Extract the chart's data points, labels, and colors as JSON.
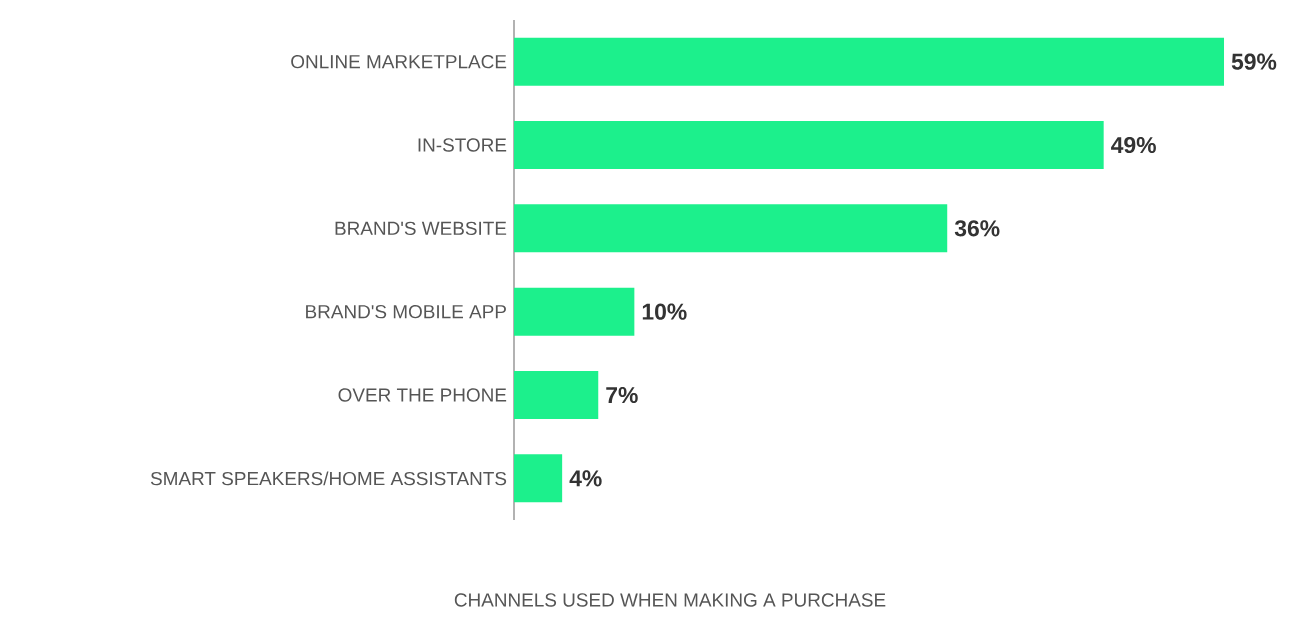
{
  "chart_data": {
    "type": "bar",
    "orientation": "horizontal",
    "categories": [
      "ONLINE MARKETPLACE",
      "IN-STORE",
      "BRAND'S WEBSITE",
      "BRAND'S MOBILE APP",
      "OVER THE PHONE",
      "SMART SPEAKERS/HOME ASSISTANTS"
    ],
    "values": [
      59,
      49,
      36,
      10,
      7,
      4
    ],
    "value_labels": [
      "59%",
      "49%",
      "36%",
      "10%",
      "7%",
      "4%"
    ],
    "color": "#1cf08c",
    "xlabel": "CHANNELS USED WHEN MAKING A PURCHASE"
  }
}
